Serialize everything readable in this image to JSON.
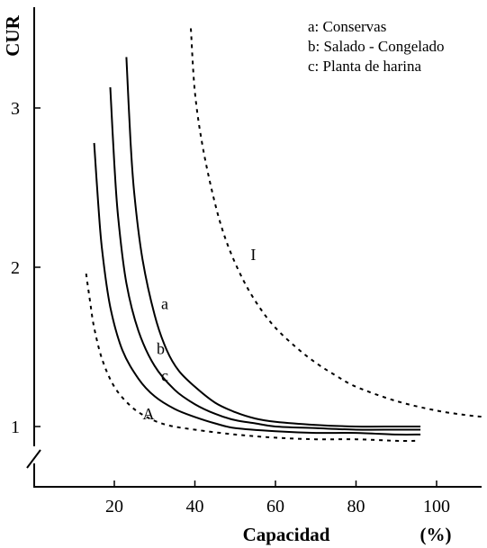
{
  "chart_data": {
    "type": "line",
    "ylabel": "CUR",
    "xlabel": "Capacidad",
    "xunit": "(%)",
    "xlim": [
      5,
      112
    ],
    "ylim": [
      0.75,
      3.6
    ],
    "xticks": [
      20,
      40,
      60,
      80,
      100
    ],
    "yticks": [
      1,
      2,
      3
    ],
    "legend_position": "top-right",
    "legend": [
      "a: Conservas",
      "b: Salado - Congelado",
      "c: Planta de harina"
    ],
    "series": [
      {
        "name": "a",
        "style": "solid",
        "x": [
          23,
          24,
          25,
          27,
          30,
          33,
          36,
          40,
          45,
          50,
          55,
          60,
          70,
          80,
          90,
          96
        ],
        "y": [
          3.32,
          2.8,
          2.45,
          2.05,
          1.7,
          1.48,
          1.35,
          1.25,
          1.15,
          1.09,
          1.05,
          1.03,
          1.01,
          1.0,
          1.0,
          1.0
        ]
      },
      {
        "name": "b",
        "style": "solid",
        "x": [
          19,
          20,
          21,
          23,
          26,
          30,
          35,
          40,
          45,
          50,
          55,
          60,
          70,
          80,
          90,
          96
        ],
        "y": [
          3.13,
          2.65,
          2.3,
          1.9,
          1.6,
          1.38,
          1.23,
          1.14,
          1.08,
          1.04,
          1.02,
          1.0,
          0.99,
          0.98,
          0.98,
          0.98
        ]
      },
      {
        "name": "c",
        "style": "solid",
        "x": [
          15,
          16,
          17,
          19,
          22,
          26,
          30,
          35,
          40,
          45,
          50,
          60,
          70,
          80,
          90,
          96
        ],
        "y": [
          2.78,
          2.4,
          2.1,
          1.75,
          1.48,
          1.3,
          1.19,
          1.11,
          1.06,
          1.02,
          0.99,
          0.97,
          0.96,
          0.96,
          0.95,
          0.95
        ]
      },
      {
        "name": "A",
        "style": "dashed",
        "x": [
          13,
          14,
          15,
          17,
          20,
          24,
          28,
          33,
          40,
          50,
          60,
          70,
          80,
          90,
          95
        ],
        "y": [
          1.96,
          1.78,
          1.62,
          1.42,
          1.25,
          1.13,
          1.06,
          1.01,
          0.98,
          0.95,
          0.93,
          0.92,
          0.92,
          0.91,
          0.91
        ]
      },
      {
        "name": "I",
        "style": "dashed",
        "x": [
          39,
          40,
          42,
          45,
          48,
          52,
          56,
          60,
          65,
          70,
          75,
          80,
          90,
          100,
          108,
          112
        ],
        "y": [
          3.5,
          3.1,
          2.75,
          2.4,
          2.15,
          1.92,
          1.75,
          1.62,
          1.5,
          1.4,
          1.32,
          1.25,
          1.16,
          1.1,
          1.07,
          1.06
        ]
      }
    ],
    "curve_labels": [
      {
        "text": "a",
        "x": 32.5,
        "y": 1.77
      },
      {
        "text": "b",
        "x": 31.5,
        "y": 1.49
      },
      {
        "text": "c",
        "x": 32.5,
        "y": 1.32
      },
      {
        "text": "A",
        "x": 28.5,
        "y": 1.08
      },
      {
        "text": "I",
        "x": 54.5,
        "y": 2.08
      }
    ]
  }
}
